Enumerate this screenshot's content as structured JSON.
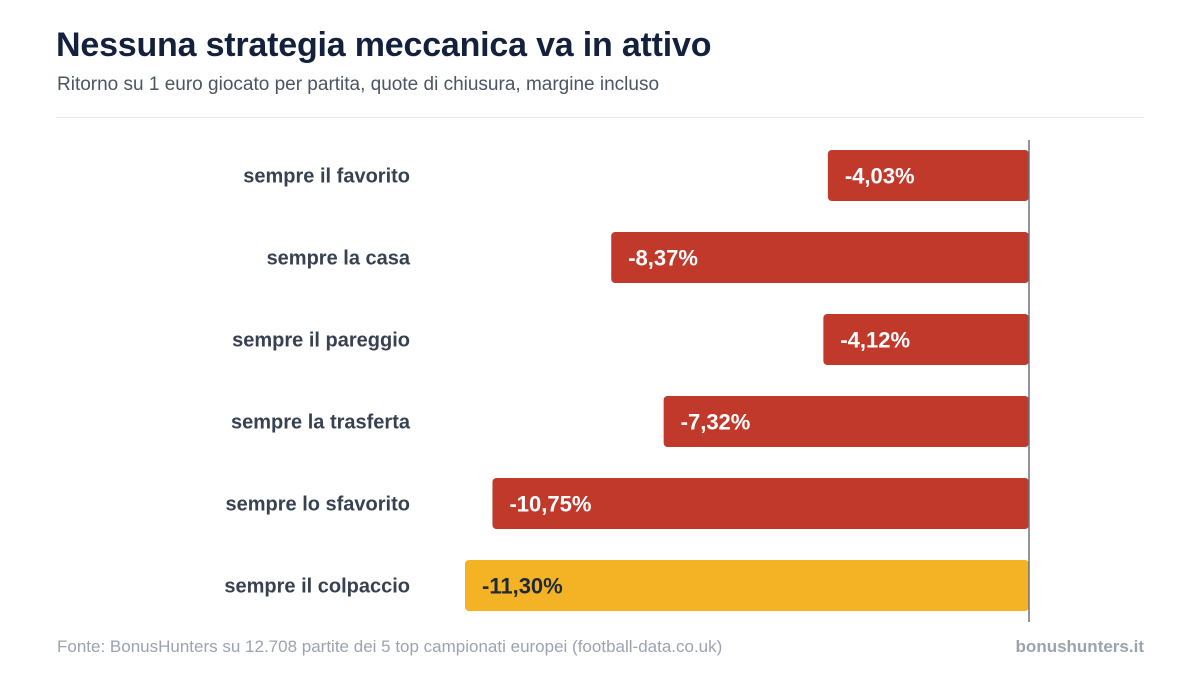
{
  "header": {
    "title": "Nessuna strategia meccanica va in attivo",
    "subtitle": "Ritorno su 1 euro giocato per partita, quote di chiusura, margine incluso"
  },
  "footer": {
    "source": "Fonte: BonusHunters su 12.708 partite dei 5 top campionati europei (football-data.co.uk)",
    "brand": "bonushunters.it"
  },
  "colors": {
    "negative_bar": "#c0392b",
    "highlight_bar": "#f4b324",
    "label_text": "#374151",
    "zero_line": "#6b7280"
  },
  "chart_data": {
    "type": "bar",
    "orientation": "horizontal",
    "categories": [
      "sempre il favorito",
      "sempre la casa",
      "sempre il pareggio",
      "sempre la trasferta",
      "sempre lo sfavorito",
      "sempre il colpaccio"
    ],
    "values": [
      -4.03,
      -8.37,
      -4.12,
      -7.32,
      -10.75,
      -11.3
    ],
    "value_labels": [
      "-4,03%",
      "-8,37%",
      "-4,12%",
      "-7,32%",
      "-10,75%",
      "-11,30%"
    ],
    "highlighted": [
      false,
      false,
      false,
      false,
      false,
      true
    ],
    "xlim": [
      -11.3,
      0
    ],
    "grid": false,
    "legend": "none"
  }
}
